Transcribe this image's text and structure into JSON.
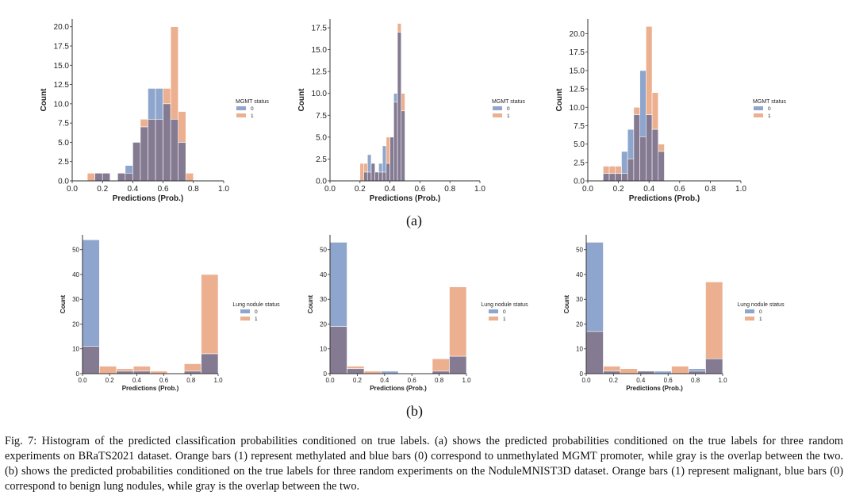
{
  "colors": {
    "class0": "#8ea6cd",
    "class1": "#ecaf8f",
    "overlap": "#847a92",
    "axis": "#333333"
  },
  "panels": [
    {
      "label": "(a)"
    },
    {
      "label": "(b)"
    }
  ],
  "caption": "Fig. 7: Histogram of the predicted classification probabilities conditioned on true labels. (a) shows the predicted probabilities conditioned on the true labels for three random experiments on BRaTS2021 dataset. Orange bars (1) represent methylated and blue bars (0) correspond to unmethylated MGMT promoter, while gray is the overlap between the two. (b) shows the predicted probabilities conditioned on the true labels for three random experiments on the NoduleMNIST3D dataset. Orange bars (1) represent malignant, blue bars (0) correspond to benign lung nodules, while gray is the overlap between the two.",
  "chart_data": [
    {
      "type": "bar",
      "xlabel": "Predictions (Prob.)",
      "ylabel": "Count",
      "xlim": [
        0,
        1
      ],
      "ylim": [
        0,
        21
      ],
      "xticks": [
        "0.0",
        "0.2",
        "0.4",
        "0.6",
        "0.8",
        "1.0"
      ],
      "yticks": [
        "0.0",
        "2.5",
        "5.0",
        "7.5",
        "10.0",
        "12.5",
        "15.0",
        "17.5",
        "20.0"
      ],
      "bin_width": 0.05,
      "legend": {
        "title": "MGMT status",
        "entries": [
          "0",
          "1"
        ],
        "placement": "right"
      },
      "series": [
        {
          "name": "0",
          "bins": [
            0.15,
            0.2,
            0.3,
            0.35,
            0.4,
            0.45,
            0.5,
            0.55,
            0.6,
            0.65,
            0.7
          ],
          "values": [
            1,
            1,
            1,
            2,
            5,
            7,
            12,
            12,
            10,
            8,
            5
          ]
        },
        {
          "name": "1",
          "bins": [
            0.1,
            0.15,
            0.2,
            0.3,
            0.35,
            0.4,
            0.45,
            0.5,
            0.55,
            0.6,
            0.65,
            0.7,
            0.75
          ],
          "values": [
            1,
            1,
            1,
            1,
            1,
            5,
            8,
            8,
            8,
            12,
            20,
            9,
            1
          ]
        }
      ]
    },
    {
      "type": "bar",
      "xlabel": "Predictions (Prob.)",
      "ylabel": "Count",
      "xlim": [
        0,
        1
      ],
      "ylim": [
        0,
        18.5
      ],
      "xticks": [
        "0.0",
        "0.2",
        "0.4",
        "0.6",
        "0.8",
        "1.0"
      ],
      "yticks": [
        "0.0",
        "2.5",
        "5.0",
        "7.5",
        "10.0",
        "12.5",
        "15.0",
        "17.5"
      ],
      "bin_width": 0.025,
      "legend": {
        "title": "MGMT status",
        "entries": [
          "0",
          "1"
        ],
        "placement": "right"
      },
      "series": [
        {
          "name": "0",
          "bins": [
            0.225,
            0.25,
            0.275,
            0.3,
            0.325,
            0.35,
            0.375,
            0.4,
            0.425,
            0.45,
            0.475
          ],
          "values": [
            1,
            3,
            2,
            1,
            2,
            4,
            2,
            5,
            10,
            17,
            8
          ]
        },
        {
          "name": "1",
          "bins": [
            0.2,
            0.225,
            0.25,
            0.275,
            0.3,
            0.325,
            0.35,
            0.375,
            0.4,
            0.425,
            0.45,
            0.475
          ],
          "values": [
            2,
            2,
            1,
            2,
            1,
            1,
            1,
            5,
            5,
            9,
            18,
            10
          ]
        }
      ]
    },
    {
      "type": "bar",
      "xlabel": "Predictions (Prob.)",
      "ylabel": "Count",
      "xlim": [
        0,
        1
      ],
      "ylim": [
        0,
        22
      ],
      "xticks": [
        "0.0",
        "0.2",
        "0.4",
        "0.6",
        "0.8",
        "1.0"
      ],
      "yticks": [
        "0.0",
        "2.5",
        "5.0",
        "7.5",
        "10.0",
        "12.5",
        "15.0",
        "17.5",
        "20.0"
      ],
      "bin_width": 0.04,
      "legend": {
        "title": "MGMT status",
        "entries": [
          "0",
          "1"
        ],
        "placement": "right"
      },
      "series": [
        {
          "name": "0",
          "bins": [
            0.1,
            0.14,
            0.18,
            0.22,
            0.26,
            0.3,
            0.34,
            0.38,
            0.42,
            0.46
          ],
          "values": [
            1,
            1,
            1,
            4,
            7,
            9,
            15,
            9,
            7,
            4
          ]
        },
        {
          "name": "1",
          "bins": [
            0.1,
            0.14,
            0.18,
            0.22,
            0.26,
            0.3,
            0.34,
            0.38,
            0.42,
            0.46
          ],
          "values": [
            2,
            2,
            2,
            1,
            3,
            10,
            6,
            21,
            12,
            5
          ]
        }
      ]
    },
    {
      "type": "bar",
      "xlabel": "Predictions (Prob.)",
      "ylabel": "Count",
      "xlim": [
        0,
        1
      ],
      "ylim": [
        0,
        56
      ],
      "xticks": [
        "0.0",
        "0.2",
        "0.4",
        "0.6",
        "0.8",
        "1.0"
      ],
      "yticks": [
        "0",
        "10",
        "20",
        "30",
        "40",
        "50"
      ],
      "bin_width": 0.125,
      "legend": {
        "title": "Lung nodule status",
        "entries": [
          "0",
          "1"
        ],
        "placement": "right"
      },
      "series": [
        {
          "name": "0",
          "bins": [
            0,
            0.125,
            0.25,
            0.375,
            0.5,
            0.625,
            0.75,
            0.875
          ],
          "values": [
            54,
            0,
            1,
            1,
            0,
            0,
            1,
            8
          ]
        },
        {
          "name": "1",
          "bins": [
            0,
            0.125,
            0.25,
            0.375,
            0.5,
            0.625,
            0.75,
            0.875
          ],
          "values": [
            11,
            3,
            2,
            3,
            1,
            0,
            4,
            40
          ]
        }
      ]
    },
    {
      "type": "bar",
      "xlabel": "Predictions (Prob.)",
      "ylabel": "Count",
      "xlim": [
        0,
        1
      ],
      "ylim": [
        0,
        56
      ],
      "xticks": [
        "0.0",
        "0.2",
        "0.4",
        "0.6",
        "0.8",
        "1.0"
      ],
      "yticks": [
        "0",
        "10",
        "20",
        "30",
        "40",
        "50"
      ],
      "bin_width": 0.125,
      "legend": {
        "title": "Lung nodule status",
        "entries": [
          "0",
          "1"
        ],
        "placement": "right"
      },
      "series": [
        {
          "name": "0",
          "bins": [
            0,
            0.125,
            0.25,
            0.375,
            0.5,
            0.625,
            0.75,
            0.875
          ],
          "values": [
            53,
            2,
            0,
            1,
            0,
            0,
            1,
            7
          ]
        },
        {
          "name": "1",
          "bins": [
            0,
            0.125,
            0.25,
            0.375,
            0.5,
            0.625,
            0.75,
            0.875
          ],
          "values": [
            19,
            3,
            1,
            0,
            0,
            0,
            6,
            35
          ]
        }
      ]
    },
    {
      "type": "bar",
      "xlabel": "Predictions (Prob.)",
      "ylabel": "Count",
      "xlim": [
        0,
        1
      ],
      "ylim": [
        0,
        56
      ],
      "xticks": [
        "0.0",
        "0.2",
        "0.4",
        "0.6",
        "0.8",
        "1.0"
      ],
      "yticks": [
        "0",
        "10",
        "20",
        "30",
        "40",
        "50"
      ],
      "bin_width": 0.125,
      "legend": {
        "title": "Lung nodule status",
        "entries": [
          "0",
          "1"
        ],
        "placement": "right"
      },
      "series": [
        {
          "name": "0",
          "bins": [
            0,
            0.125,
            0.25,
            0.375,
            0.5,
            0.625,
            0.75,
            0.875
          ],
          "values": [
            53,
            1,
            0,
            1,
            1,
            0,
            2,
            6
          ]
        },
        {
          "name": "1",
          "bins": [
            0,
            0.125,
            0.25,
            0.375,
            0.5,
            0.625,
            0.75,
            0.875
          ],
          "values": [
            17,
            3,
            2,
            1,
            0,
            3,
            1,
            37
          ]
        }
      ]
    }
  ]
}
